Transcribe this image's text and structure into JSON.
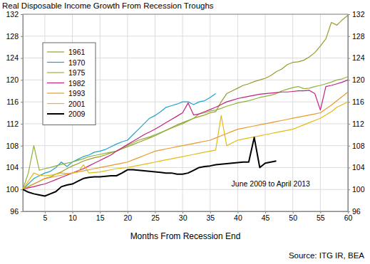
{
  "chart_data": {
    "type": "line",
    "title": "Real Disposable Income Growth From Recession Troughs",
    "x_label": "Months From Recession End",
    "source": "Source: ITG IR, BEA",
    "x": [
      1,
      2,
      3,
      4,
      5,
      6,
      7,
      8,
      9,
      10,
      11,
      12,
      13,
      14,
      15,
      16,
      17,
      18,
      19,
      20,
      21,
      22,
      23,
      24,
      25,
      26,
      27,
      28,
      29,
      30,
      31,
      32,
      33,
      34,
      35,
      36,
      37,
      38,
      39,
      40,
      41,
      42,
      43,
      44,
      45,
      46,
      47,
      48,
      49,
      50,
      51,
      52,
      53,
      54,
      55,
      56,
      57,
      58,
      59,
      60
    ],
    "xlim": [
      1,
      60
    ],
    "xticks": [
      5,
      10,
      15,
      20,
      25,
      30,
      35,
      40,
      45,
      50,
      55,
      60
    ],
    "ylim": [
      96,
      132
    ],
    "yticks": [
      96,
      100,
      104,
      108,
      112,
      116,
      120,
      124,
      128,
      132
    ],
    "y2lim": [
      96,
      132
    ],
    "y2ticks": [
      96,
      100,
      104,
      108,
      112,
      116,
      120,
      124,
      128,
      132
    ],
    "grid": true,
    "legend": "upper left",
    "annotations": [
      {
        "text": "June 2009 to April 2013",
        "x": 46,
        "y": 100.6
      }
    ],
    "series": [
      {
        "name": "1961",
        "color": "#9a9a2e",
        "values": [
          100,
          100.5,
          101,
          101.5,
          102,
          102.3,
          102.8,
          103.2,
          103.8,
          104.3,
          104.7,
          105.2,
          105.5,
          105.8,
          106,
          106.3,
          106.7,
          107,
          107.4,
          107.8,
          108.2,
          108.6,
          109,
          109.4,
          109.8,
          110.3,
          110.8,
          111.3,
          111.8,
          112.2,
          112.6,
          113,
          113.3,
          113.6,
          114,
          114.2,
          116,
          117.5,
          118,
          118.5,
          119,
          119.3,
          119.7,
          120,
          120.3,
          120.8,
          121.5,
          122,
          122.8,
          123.2,
          123.3,
          123.6,
          124.2,
          125,
          126.2,
          127.5,
          130.5,
          130,
          131,
          131.8
        ]
      },
      {
        "name": "1970",
        "color": "#1ba3cf",
        "values": [
          100,
          101,
          102,
          102.5,
          103,
          103.3,
          104,
          105,
          104.2,
          105,
          105.5,
          106,
          106.3,
          106.8,
          107,
          107.3,
          107.8,
          108.3,
          108.7,
          109,
          110,
          111,
          112,
          113,
          113.5,
          114.2,
          115,
          115.3,
          115.6,
          116,
          116,
          115.5,
          116,
          116.2,
          116.8,
          117.5,
          null,
          null,
          null,
          null,
          null,
          null,
          null,
          null,
          null,
          null,
          null,
          null,
          null,
          null,
          null,
          null,
          null,
          null,
          null,
          null,
          null,
          null,
          null,
          null
        ]
      },
      {
        "name": "1975",
        "color": "#8fb23a",
        "values": [
          100,
          103,
          108,
          103.5,
          103.8,
          104,
          104.3,
          104.6,
          104.8,
          105,
          105.3,
          105.6,
          106,
          106.2,
          106.4,
          106.6,
          106.8,
          107,
          107.5,
          108,
          108.5,
          109,
          109.3,
          109.6,
          110,
          110.4,
          110.8,
          111.2,
          111.6,
          112,
          112.5,
          113,
          113.8,
          114,
          114.3,
          114.5,
          114.8,
          115.2,
          115.5,
          115.8,
          116,
          116.2,
          116.5,
          116.8,
          117,
          117.2,
          117.5,
          118,
          118.3,
          118.6,
          118.8,
          118.4,
          118.5,
          118.8,
          119,
          119.3,
          119.6,
          120,
          120.2,
          120.6
        ]
      },
      {
        "name": "1982",
        "color": "#c2217c",
        "values": [
          100,
          100.3,
          100.5,
          100.8,
          101,
          101.4,
          101.8,
          102.2,
          102.6,
          103,
          103.4,
          103.8,
          104.3,
          104.8,
          105.3,
          105.8,
          106.3,
          107,
          107.6,
          108.2,
          108.8,
          109.4,
          110,
          110.5,
          111,
          111.6,
          112.2,
          112.8,
          113.4,
          114,
          115.8,
          113.6,
          113.8,
          114.2,
          114.6,
          115,
          115.5,
          116,
          116.3,
          116.6,
          116.8,
          117,
          117.2,
          117.4,
          117.5,
          117.6,
          117.7,
          117.8,
          117.8,
          117.9,
          118,
          118,
          118.1,
          117.5,
          114.5,
          118.8,
          119,
          119.3,
          119.6,
          120
        ]
      },
      {
        "name": "1993",
        "color": "#e89a2c",
        "values": [
          100,
          100.5,
          101,
          101.5,
          102,
          102.2,
          102.4,
          102.6,
          102.8,
          103,
          103.2,
          103.4,
          103.6,
          103.8,
          104,
          104.2,
          104.4,
          104.6,
          104.8,
          105,
          105.4,
          105.8,
          106.2,
          106.6,
          107,
          107.2,
          107.4,
          107.6,
          107.8,
          108,
          108.2,
          108.4,
          108.6,
          108.8,
          109,
          109.4,
          109.8,
          110.2,
          110.6,
          111,
          111.2,
          111.4,
          111.6,
          111.8,
          112,
          112.2,
          112.4,
          112.6,
          112.8,
          113,
          113.2,
          113.4,
          113.6,
          113.8,
          114,
          114.7,
          115.4,
          116.2,
          117,
          117.8
        ]
      },
      {
        "name": "2001",
        "color": "#e3bb12",
        "values": [
          100,
          101.5,
          103,
          102.6,
          102.5,
          102.6,
          102.8,
          103,
          102.9,
          103,
          103.2,
          104.5,
          103,
          103.1,
          103.2,
          103.4,
          103.6,
          103.8,
          103.9,
          104,
          104.2,
          104.4,
          104.6,
          104.8,
          105,
          105.2,
          105.4,
          105.6,
          105.8,
          106,
          106.2,
          106.4,
          106.6,
          106.8,
          107,
          107.2,
          113.5,
          108,
          108.5,
          109,
          109.2,
          109.4,
          109.6,
          109.8,
          110,
          110.2,
          110.4,
          110.6,
          110.8,
          111,
          111.4,
          111.8,
          112.2,
          112.6,
          113,
          113.6,
          114.2,
          115,
          115.5,
          116
        ]
      },
      {
        "name": "2009",
        "color": "#000000",
        "values": [
          100,
          99.5,
          99.2,
          99,
          98.8,
          99.2,
          99.6,
          100.5,
          100.8,
          101,
          101.5,
          102,
          102.2,
          102.3,
          102.3,
          102.4,
          102.5,
          102.5,
          103,
          103.6,
          103.6,
          103.5,
          103.4,
          103.3,
          103.2,
          103.1,
          103,
          103,
          102.8,
          102.8,
          103,
          103.5,
          104,
          104.2,
          104.3,
          104.5,
          104.6,
          104.7,
          104.8,
          104.9,
          105,
          105,
          109.5,
          104,
          104.8,
          105,
          105.2,
          null,
          null,
          null,
          null,
          null,
          null,
          null,
          null,
          null,
          null,
          null,
          null,
          null
        ]
      }
    ]
  }
}
